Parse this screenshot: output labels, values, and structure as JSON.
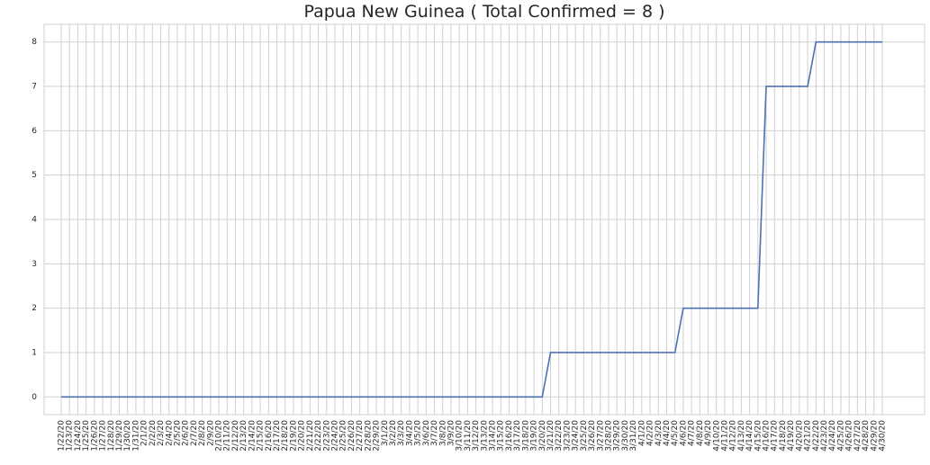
{
  "chart_data": {
    "type": "line",
    "title": "Papua New Guinea ( Total Confirmed = 8 )",
    "xlabel": "",
    "ylabel": "",
    "ylim": [
      -0.4,
      8.4
    ],
    "yticks": [
      0,
      1,
      2,
      3,
      4,
      5,
      6,
      7,
      8
    ],
    "grid": true,
    "colors": {
      "line": "#4c72b0",
      "grid": "#cfcfcf",
      "axes": "#cfcfcf",
      "text": "#262626"
    },
    "categories": [
      "1/22/20",
      "1/23/20",
      "1/24/20",
      "1/25/20",
      "1/26/20",
      "1/27/20",
      "1/28/20",
      "1/29/20",
      "1/30/20",
      "1/31/20",
      "2/1/20",
      "2/2/20",
      "2/3/20",
      "2/4/20",
      "2/5/20",
      "2/6/20",
      "2/7/20",
      "2/8/20",
      "2/9/20",
      "2/10/20",
      "2/11/20",
      "2/12/20",
      "2/13/20",
      "2/14/20",
      "2/15/20",
      "2/16/20",
      "2/17/20",
      "2/18/20",
      "2/19/20",
      "2/20/20",
      "2/21/20",
      "2/22/20",
      "2/23/20",
      "2/24/20",
      "2/25/20",
      "2/26/20",
      "2/27/20",
      "2/28/20",
      "2/29/20",
      "3/1/20",
      "3/2/20",
      "3/3/20",
      "3/4/20",
      "3/5/20",
      "3/6/20",
      "3/7/20",
      "3/8/20",
      "3/9/20",
      "3/10/20",
      "3/11/20",
      "3/12/20",
      "3/13/20",
      "3/14/20",
      "3/15/20",
      "3/16/20",
      "3/17/20",
      "3/18/20",
      "3/19/20",
      "3/20/20",
      "3/21/20",
      "3/22/20",
      "3/23/20",
      "3/24/20",
      "3/25/20",
      "3/26/20",
      "3/27/20",
      "3/28/20",
      "3/29/20",
      "3/30/20",
      "3/31/20",
      "4/1/20",
      "4/2/20",
      "4/3/20",
      "4/4/20",
      "4/5/20",
      "4/6/20",
      "4/7/20",
      "4/8/20",
      "4/9/20",
      "4/10/20",
      "4/11/20",
      "4/12/20",
      "4/13/20",
      "4/14/20",
      "4/15/20",
      "4/16/20",
      "4/17/20",
      "4/18/20",
      "4/19/20",
      "4/20/20",
      "4/21/20",
      "4/22/20",
      "4/23/20",
      "4/24/20",
      "4/25/20",
      "4/26/20",
      "4/27/20",
      "4/28/20",
      "4/29/20",
      "4/30/20"
    ],
    "series": [
      {
        "name": "Total Confirmed",
        "values": [
          0,
          0,
          0,
          0,
          0,
          0,
          0,
          0,
          0,
          0,
          0,
          0,
          0,
          0,
          0,
          0,
          0,
          0,
          0,
          0,
          0,
          0,
          0,
          0,
          0,
          0,
          0,
          0,
          0,
          0,
          0,
          0,
          0,
          0,
          0,
          0,
          0,
          0,
          0,
          0,
          0,
          0,
          0,
          0,
          0,
          0,
          0,
          0,
          0,
          0,
          0,
          0,
          0,
          0,
          0,
          0,
          0,
          0,
          0,
          1,
          1,
          1,
          1,
          1,
          1,
          1,
          1,
          1,
          1,
          1,
          1,
          1,
          1,
          1,
          1,
          2,
          2,
          2,
          2,
          2,
          2,
          2,
          2,
          2,
          2,
          7,
          7,
          7,
          7,
          7,
          7,
          8,
          8,
          8,
          8,
          8,
          8,
          8,
          8,
          8
        ]
      }
    ]
  }
}
